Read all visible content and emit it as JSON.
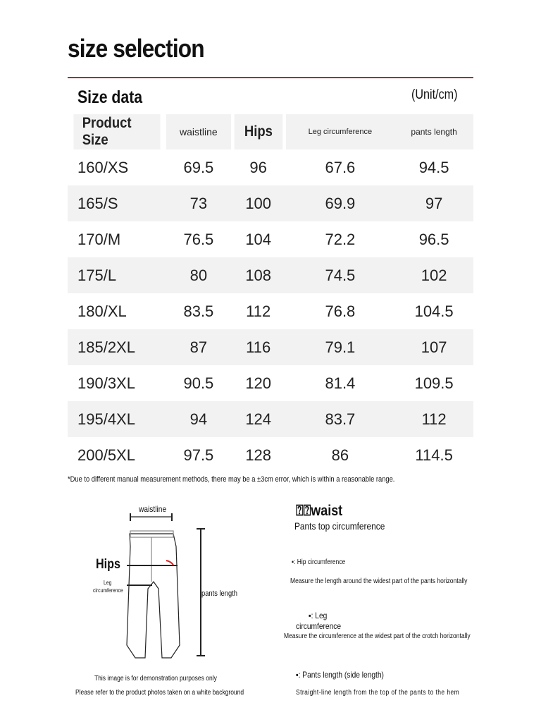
{
  "title": "size selection",
  "subtitle": "Size data",
  "unit": "(Unit/cm)",
  "headers": [
    "Product Size",
    "waistline",
    "Hips",
    "Leg circumference",
    "pants length"
  ],
  "rows": [
    [
      "160/XS",
      "69.5",
      "96",
      "67.6",
      "94.5"
    ],
    [
      "165/S",
      "73",
      "100",
      "69.9",
      "97"
    ],
    [
      "170/M",
      "76.5",
      "104",
      "72.2",
      "96.5"
    ],
    [
      "175/L",
      "80",
      "108",
      "74.5",
      "102"
    ],
    [
      "180/XL",
      "83.5",
      "112",
      "76.8",
      "104.5"
    ],
    [
      "185/2XL",
      "87",
      "116",
      "79.1",
      "107"
    ],
    [
      "190/3XL",
      "90.5",
      "120",
      "81.4",
      "109.5"
    ],
    [
      "195/4XL",
      "94",
      "124",
      "83.7",
      "112"
    ],
    [
      "200/5XL",
      "97.5",
      "128",
      "86",
      "114.5"
    ]
  ],
  "note": "*Due to different manual measurement methods, there may be a ±3cm error, which is within a reasonable range.",
  "diagram": {
    "waistline": "waistline",
    "hips": "Hips",
    "leg1": "Leg",
    "leg2": "circumference",
    "length": "pants length",
    "demo1": "This image is for demonstration purposes only",
    "demo2": "Please refer to the product photos taken on a white background"
  },
  "desc": {
    "waist_title": "⍰⍰waist",
    "waist_desc": "Pants top circumference",
    "hip_title": "▪: Hip circumference",
    "hip_desc": "Measure the length around the widest part of the pants horizontally",
    "leg_title1": "▪: Leg",
    "leg_title2": "circumference",
    "leg_desc": "Measure the circumference at the widest part of the crotch horizontally",
    "len_title": "▪: Pants length (side length)",
    "len_desc": "Straight-line length from the top of the pants to the hem"
  },
  "colors": {
    "accent": "#b3272d",
    "row_alt": "#f2f2f2"
  }
}
